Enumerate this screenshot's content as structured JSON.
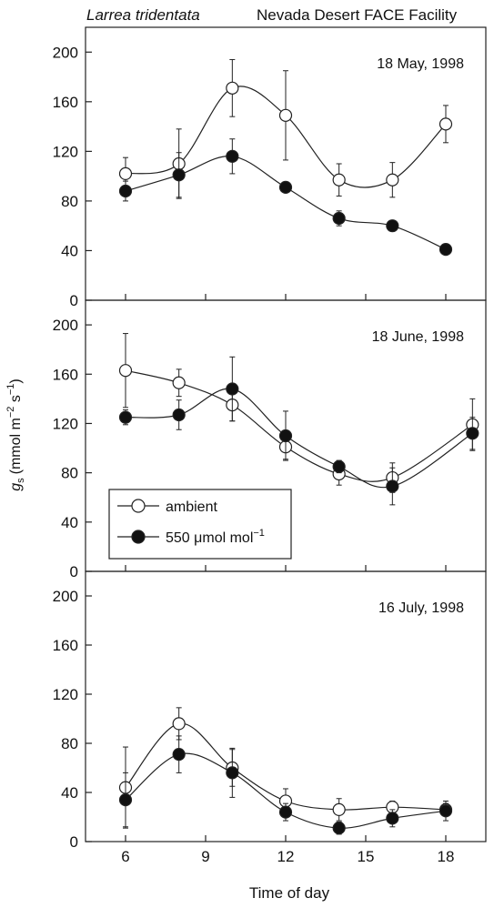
{
  "header": {
    "species": "Larrea tridentata",
    "facility": "Nevada Desert FACE Facility"
  },
  "axes": {
    "xlabel": "Time of day",
    "ylabel_main": "g",
    "ylabel_sub": "s",
    "ylabel_units": "(mmol m",
    "ylabel_exp1": "−2",
    "ylabel_s": " s",
    "ylabel_exp2": "−1",
    "ylabel_close": ")",
    "xticks": [
      6,
      9,
      12,
      15,
      18
    ],
    "yticks": [
      0,
      40,
      80,
      120,
      160,
      200
    ]
  },
  "legend": {
    "ambient": "ambient",
    "elevated": "550 μmol mol",
    "elevated_exp": "−1",
    "panel": 1,
    "placement": "lower-left"
  },
  "colors": {
    "ambient_fill": "#ffffff",
    "elevated_fill": "#111111",
    "line": "#222222"
  },
  "chart_data": [
    {
      "type": "line",
      "panel_title": "18 May, 1998",
      "x": [
        6,
        8,
        10,
        12,
        14,
        16,
        18
      ],
      "xlim": [
        4.5,
        19.5
      ],
      "ylim": [
        0,
        220
      ],
      "series": [
        {
          "name": "ambient",
          "values": [
            102,
            110,
            171,
            149,
            97,
            97,
            142
          ],
          "err": [
            13,
            28,
            23,
            36,
            13,
            14,
            15
          ]
        },
        {
          "name": "550 μmol mol−1",
          "values": [
            88,
            101,
            116,
            91,
            66,
            60,
            41
          ],
          "err": [
            8,
            18,
            14,
            4,
            6,
            4,
            3
          ]
        }
      ]
    },
    {
      "type": "line",
      "panel_title": "18 June, 1998",
      "x": [
        6,
        8,
        10,
        12,
        14,
        16,
        19
      ],
      "xlim": [
        4.5,
        19.5
      ],
      "ylim": [
        0,
        220
      ],
      "series": [
        {
          "name": "ambient",
          "values": [
            163,
            153,
            135,
            101,
            79,
            76,
            119
          ],
          "err": [
            30,
            11,
            13,
            10,
            9,
            12,
            21
          ]
        },
        {
          "name": "550 μmol mol−1",
          "values": [
            125,
            127,
            148,
            110,
            85,
            69,
            112
          ],
          "err": [
            6,
            12,
            26,
            20,
            5,
            15,
            13
          ]
        }
      ]
    },
    {
      "type": "line",
      "panel_title": "16 July, 1998",
      "x": [
        6,
        8,
        10,
        12,
        14,
        16,
        18
      ],
      "xlim": [
        4.5,
        19.5
      ],
      "ylim": [
        0,
        220
      ],
      "series": [
        {
          "name": "ambient",
          "values": [
            44,
            96,
            60,
            33,
            26,
            28,
            26
          ],
          "err": [
            33,
            13,
            15,
            10,
            9,
            5,
            5
          ]
        },
        {
          "name": "550 μmol mol−1",
          "values": [
            34,
            71,
            56,
            24,
            11,
            19,
            25
          ],
          "err": [
            22,
            15,
            20,
            7,
            5,
            7,
            8
          ]
        }
      ]
    }
  ]
}
